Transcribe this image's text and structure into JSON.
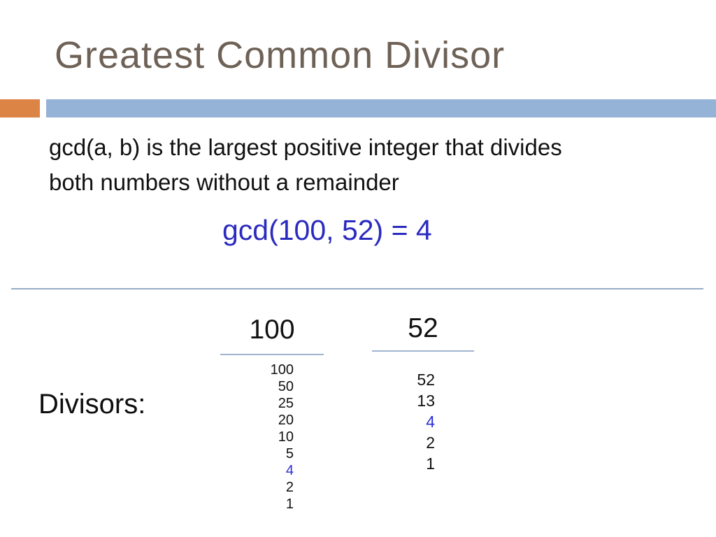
{
  "slide": {
    "title": "Greatest Common Divisor",
    "definition_lines": [
      "gcd(a, b) is the largest positive integer that divides",
      "both numbers without a remainder"
    ],
    "formula": "gcd(100, 52) = 4",
    "divisors_label": "Divisors:",
    "columns": [
      {
        "header": "100",
        "divisors": [
          {
            "value": "100"
          },
          {
            "value": "50"
          },
          {
            "value": "25"
          },
          {
            "value": "20"
          },
          {
            "value": "10"
          },
          {
            "value": "5"
          },
          {
            "value": "4",
            "highlight": true
          },
          {
            "value": "2"
          },
          {
            "value": "1"
          }
        ]
      },
      {
        "header": "52",
        "divisors": [
          {
            "value": "52"
          },
          {
            "value": "13"
          },
          {
            "value": "4",
            "highlight": true
          },
          {
            "value": "2"
          },
          {
            "value": "1"
          }
        ]
      }
    ],
    "colors": {
      "title_brown": "#6E6156",
      "accent_orange": "#DC8445",
      "accent_blue": "#95B3D7",
      "line_blue": "#9FB4CE",
      "divider_blue": "#96ABC8",
      "formula_blue": "#2B2BC0",
      "highlight_blue": "#2B2BD6",
      "body_text": "#111111"
    }
  }
}
